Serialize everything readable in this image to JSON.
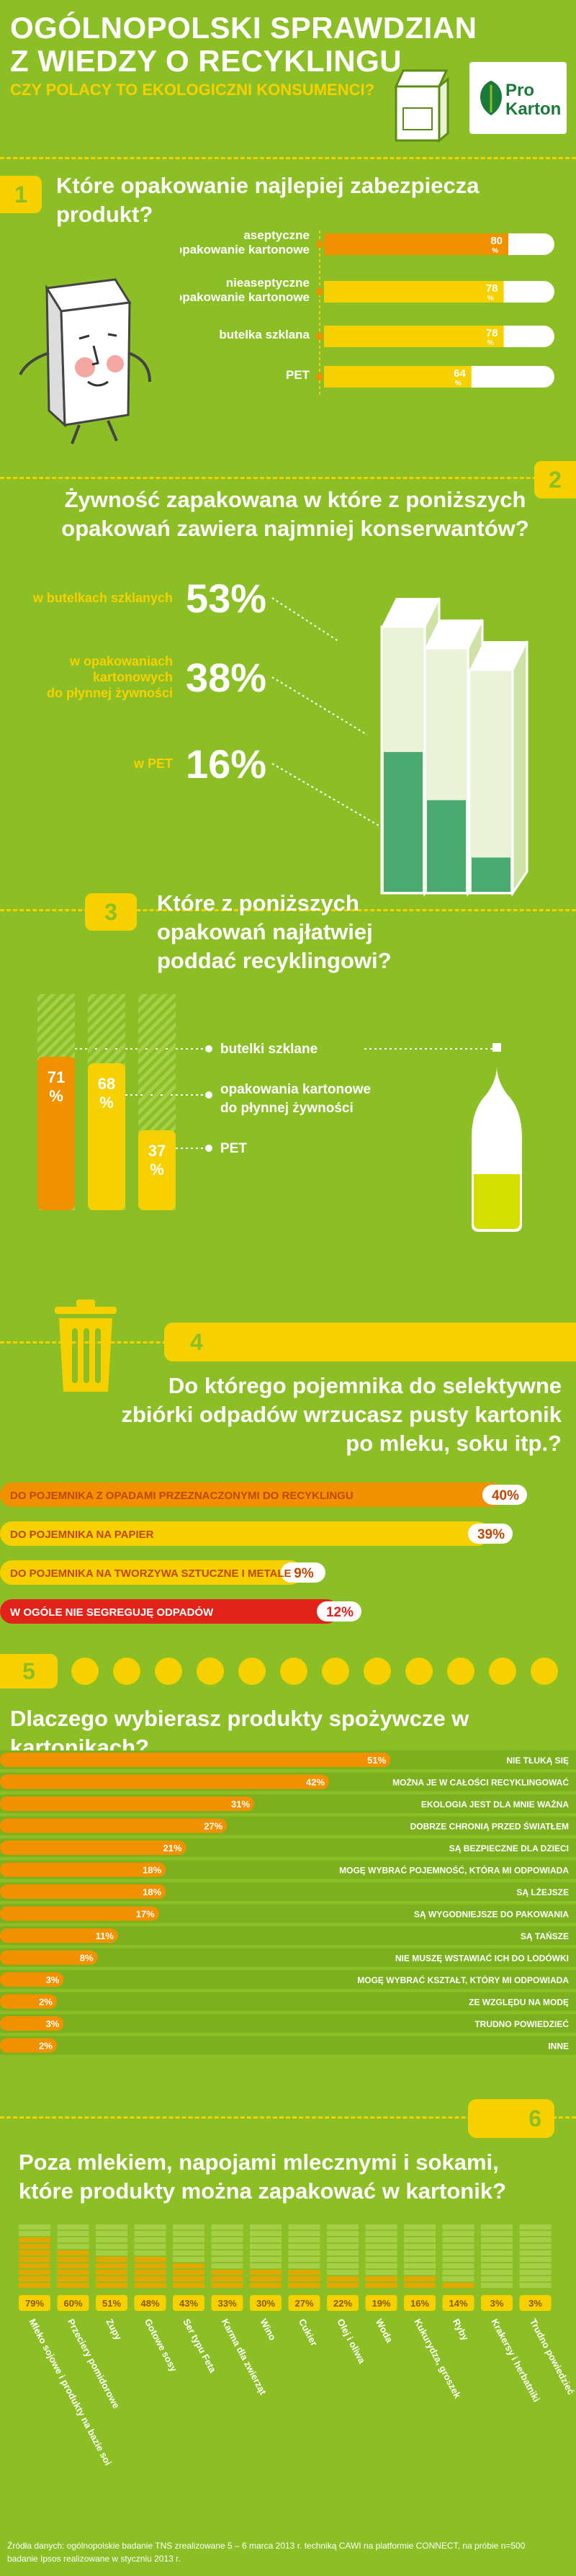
{
  "header": {
    "title_line1": "OGÓLNOPOLSKI SPRAWDZIAN",
    "title_line2": "Z WIEDZY O RECYKLINGU",
    "subtitle": "CZY POLACY TO EKOLOGICZNI KONSUMENCI?",
    "logo_text_pro": "Pro",
    "logo_text_karton": "Karton"
  },
  "colors": {
    "background": "#8cbf26",
    "dark_green": "#5d8c16",
    "yellow": "#f7d000",
    "orange": "#f29100",
    "red": "#e2231a",
    "white": "#ffffff"
  },
  "q1": {
    "number": "1",
    "title": "Które opakowanie najlepiej zabezpiecza produkt?"
  },
  "q2": {
    "number": "2",
    "title_line1": "Żywność zapakowana w które z poniższych",
    "title_line2": "opakowań zawiera najmniej konserwantów?"
  },
  "q3": {
    "number": "3",
    "title_line1": "Które z poniższych",
    "title_line2": "opakowań najłatwiej",
    "title_line3": "poddać recyklingowi?"
  },
  "q4": {
    "number": "4",
    "title_line1": "Do którego pojemnika do selektywne",
    "title_line2": "zbiórki odpadów wrzucasz pusty kartonik",
    "title_line3": "po mleku, soku itp.?"
  },
  "q5": {
    "number": "5",
    "title": "Dlaczego wybierasz produkty spożywcze w kartonikach?"
  },
  "q6": {
    "number": "6",
    "title_line1": "Poza mlekiem, napojami mlecznymi i sokami,",
    "title_line2": "które produkty można zapakować w kartonik?"
  },
  "footer": {
    "source_line1": "Źródła danych: ogólnopolskie badanie TNS zrealizowane 5 – 6 marca 2013 r. techniką CAWI na platformie CONNECT, na próbie n=500",
    "source_line2": "badanie Ipsos realizowane w styczniu 2013 r."
  },
  "chart_data": [
    {
      "id": "q1",
      "type": "bar",
      "orientation": "horizontal",
      "categories": [
        "aseptyczne opakowanie kartonowe",
        "nieaseptyczne opakowanie kartonowe",
        "butelka szklana",
        "PET"
      ],
      "values": [
        80,
        78,
        78,
        64
      ],
      "value_labels": [
        "80",
        "78",
        "78",
        "64"
      ],
      "unit": "%",
      "ylim": [
        0,
        100
      ]
    },
    {
      "id": "q2",
      "type": "bar",
      "categories": [
        "w butelkach szklanych",
        "w opakowaniach kartonowych do płynnej żywności",
        "w PET"
      ],
      "values": [
        53,
        38,
        16
      ],
      "value_labels": [
        "53%",
        "38%",
        "16%"
      ],
      "ylim": [
        0,
        100
      ]
    },
    {
      "id": "q3",
      "type": "bar",
      "orientation": "vertical",
      "categories": [
        "butelki szklane",
        "opakowania kartonowe do płynnej żywności",
        "PET"
      ],
      "values": [
        71,
        68,
        37
      ],
      "value_labels": [
        "71",
        "68",
        "37"
      ],
      "unit": "%",
      "ylim": [
        0,
        100
      ]
    },
    {
      "id": "q4",
      "type": "bar",
      "orientation": "horizontal",
      "categories": [
        "DO POJEMNIKA Z OPADAMI PRZEZNACZONYMI DO RECYKLINGU",
        "DO POJEMNIKA NA PAPIER",
        "DO POJEMNIKA NA TWORZYWA SZTUCZNE I METALE",
        "W OGÓLE NIE SEGREGUJĘ ODPADÓW"
      ],
      "values": [
        40,
        39,
        9,
        12
      ],
      "value_labels": [
        "40%",
        "39%",
        "9%",
        "12%"
      ],
      "ylim": [
        0,
        100
      ]
    },
    {
      "id": "q5",
      "type": "bar",
      "orientation": "horizontal",
      "categories": [
        "NIE TŁUKĄ SIĘ",
        "MOŻNA JE W CAŁOŚCI RECYKLINGOWAĆ",
        "EKOLOGIA JEST DLA MNIE WAŻNA",
        "DOBRZE CHRONIĄ PRZED ŚWIATŁEM",
        "SĄ BEZPIECZNE DLA DZIECI",
        "MOGĘ WYBRAĆ POJEMNOŚĆ, KTÓRA MI ODPOWIADA",
        "SĄ LŻEJSZE",
        "SĄ WYGODNIEJSZE DO PAKOWANIA",
        "SĄ TAŃSZE",
        "NIE MUSZĘ WSTAWIAĆ ICH DO LODÓWKI",
        "MOGĘ WYBRAĆ KSZTAŁT, KTÓRY MI ODPOWIADA",
        "ZE WZGLĘDU NA MODĘ",
        "TRUDNO POWIEDZIEĆ",
        "INNE"
      ],
      "values": [
        51,
        42,
        31,
        27,
        21,
        18,
        18,
        17,
        11,
        8,
        3,
        2,
        3,
        2
      ],
      "value_labels": [
        "51%",
        "42%",
        "31%",
        "27%",
        "21%",
        "18%",
        "18%",
        "17%",
        "11%",
        "8%",
        "3%",
        "2%",
        "3%",
        "2%"
      ],
      "ylim": [
        0,
        100
      ]
    },
    {
      "id": "q6",
      "type": "bar",
      "orientation": "vertical",
      "categories": [
        "Mleko sojowe i produkty na bazie soi",
        "Przeciery pomidorowe",
        "Zupy",
        "Gotowe sosy",
        "Ser typu Feta",
        "Karma dla zwierząt",
        "Wino",
        "Cukier",
        "Olej i oliwa",
        "Woda",
        "Kukurydza, groszek",
        "Ryby",
        "Krakersy i herbatniki",
        "Trudno powiedzieć"
      ],
      "values": [
        79,
        60,
        51,
        48,
        43,
        33,
        30,
        27,
        22,
        19,
        16,
        14,
        3,
        3
      ],
      "value_labels": [
        "79%",
        "60%",
        "51%",
        "48%",
        "43%",
        "33%",
        "30%",
        "27%",
        "22%",
        "19%",
        "16%",
        "14%",
        "3%",
        "3%"
      ],
      "ylim": [
        0,
        100
      ]
    }
  ]
}
